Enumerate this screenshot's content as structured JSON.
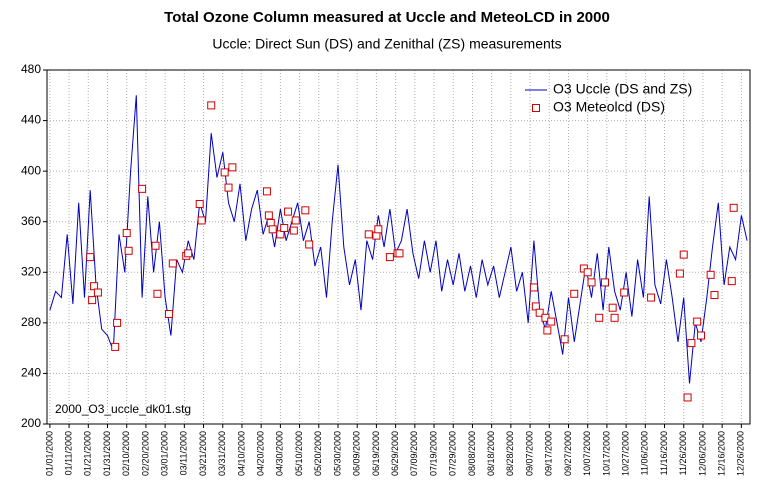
{
  "chart_data": {
    "type": "line",
    "title": "Total Ozone Column measured at Uccle and MeteoLCD in 2000",
    "subtitle": "Uccle: Direct Sun (DS) and Zenithal (ZS) measurements",
    "annotation": "2000_O3_uccle_dk01.stg",
    "xlim": [
      -1.5,
      364.5
    ],
    "ylim": [
      200,
      480
    ],
    "yticks": [
      200,
      240,
      280,
      320,
      360,
      400,
      440,
      480
    ],
    "xticks": [
      {
        "value": 0,
        "label": "01/01/2000"
      },
      {
        "value": 10,
        "label": "01/11/2000"
      },
      {
        "value": 20,
        "label": "01/21/2000"
      },
      {
        "value": 30,
        "label": "01/31/2000"
      },
      {
        "value": 40,
        "label": "02/10/2000"
      },
      {
        "value": 50,
        "label": "02/20/2000"
      },
      {
        "value": 60,
        "label": "03/01/2000"
      },
      {
        "value": 70,
        "label": "03/11/2000"
      },
      {
        "value": 80,
        "label": "03/21/2000"
      },
      {
        "value": 90,
        "label": "03/31/2000"
      },
      {
        "value": 100,
        "label": "04/10/2000"
      },
      {
        "value": 110,
        "label": "04/20/2000"
      },
      {
        "value": 120,
        "label": "04/30/2000"
      },
      {
        "value": 130,
        "label": "05/10/2000"
      },
      {
        "value": 140,
        "label": "05/20/2000"
      },
      {
        "value": 150,
        "label": "05/30/2000"
      },
      {
        "value": 160,
        "label": "06/09/2000"
      },
      {
        "value": 170,
        "label": "06/19/2000"
      },
      {
        "value": 180,
        "label": "06/29/2000"
      },
      {
        "value": 190,
        "label": "07/09/2000"
      },
      {
        "value": 200,
        "label": "07/19/2000"
      },
      {
        "value": 210,
        "label": "07/29/2000"
      },
      {
        "value": 220,
        "label": "08/08/2000"
      },
      {
        "value": 230,
        "label": "08/18/2000"
      },
      {
        "value": 240,
        "label": "08/28/2000"
      },
      {
        "value": 250,
        "label": "09/07/2000"
      },
      {
        "value": 260,
        "label": "09/17/2000"
      },
      {
        "value": 270,
        "label": "09/27/2000"
      },
      {
        "value": 280,
        "label": "10/07/2000"
      },
      {
        "value": 290,
        "label": "10/17/2000"
      },
      {
        "value": 300,
        "label": "10/27/2000"
      },
      {
        "value": 310,
        "label": "11/06/2000"
      },
      {
        "value": 320,
        "label": "11/16/2000"
      },
      {
        "value": 330,
        "label": "11/26/2000"
      },
      {
        "value": 340,
        "label": "12/06/2000"
      },
      {
        "value": 350,
        "label": "12/16/2000"
      },
      {
        "value": 360,
        "label": "12/26/2000"
      }
    ],
    "grid": true,
    "legend": "upper right",
    "series": [
      {
        "name": "O3 Uccle (DS and ZS)",
        "type": "line",
        "color": "#0000c0",
        "x": [
          0,
          3,
          6,
          9,
          12,
          15,
          18,
          21,
          24,
          27,
          30,
          33,
          36,
          39,
          42,
          45,
          48,
          51,
          54,
          57,
          60,
          63,
          66,
          69,
          72,
          75,
          78,
          81,
          84,
          87,
          90,
          93,
          96,
          99,
          102,
          105,
          108,
          111,
          114,
          117,
          120,
          123,
          126,
          129,
          132,
          135,
          138,
          141,
          144,
          147,
          150,
          153,
          156,
          159,
          162,
          165,
          168,
          171,
          174,
          177,
          180,
          183,
          186,
          189,
          192,
          195,
          198,
          201,
          204,
          207,
          210,
          213,
          216,
          219,
          222,
          225,
          228,
          231,
          234,
          237,
          240,
          243,
          246,
          249,
          252,
          255,
          258,
          261,
          264,
          267,
          270,
          273,
          276,
          279,
          282,
          285,
          288,
          291,
          294,
          297,
          300,
          303,
          306,
          309,
          312,
          315,
          318,
          321,
          324,
          327,
          330,
          333,
          336,
          339,
          342,
          345,
          348,
          351,
          354,
          357,
          360,
          363
        ],
        "values": [
          290,
          305,
          300,
          350,
          295,
          375,
          300,
          385,
          310,
          275,
          270,
          258,
          350,
          320,
          400,
          460,
          300,
          380,
          320,
          360,
          300,
          270,
          330,
          320,
          345,
          330,
          375,
          360,
          430,
          395,
          415,
          375,
          360,
          390,
          345,
          370,
          385,
          350,
          365,
          340,
          370,
          345,
          360,
          375,
          345,
          360,
          325,
          340,
          300,
          360,
          405,
          340,
          310,
          330,
          290,
          345,
          330,
          365,
          340,
          370,
          335,
          345,
          370,
          335,
          315,
          345,
          320,
          345,
          305,
          330,
          310,
          335,
          305,
          325,
          300,
          330,
          310,
          325,
          300,
          320,
          340,
          305,
          320,
          280,
          345,
          290,
          275,
          305,
          280,
          255,
          300,
          265,
          295,
          325,
          300,
          335,
          290,
          340,
          305,
          290,
          320,
          285,
          330,
          300,
          380,
          310,
          295,
          330,
          300,
          265,
          300,
          232,
          280,
          265,
          300,
          340,
          375,
          310,
          340,
          330,
          365,
          345
        ]
      },
      {
        "name": "O3 Meteolcd (DS)",
        "type": "scatter",
        "color": "#d00000",
        "x": [
          21,
          22,
          23,
          25,
          34,
          35,
          40,
          41,
          48,
          55,
          56,
          62,
          64,
          71,
          72,
          78,
          79,
          84,
          91,
          93,
          95,
          113,
          114,
          115,
          116,
          120,
          122,
          124,
          127,
          128,
          133,
          135,
          166,
          170,
          171,
          177,
          181,
          182,
          252,
          253,
          255,
          258,
          259,
          261,
          268,
          273,
          278,
          280,
          282,
          286,
          289,
          293,
          294,
          299,
          313,
          328,
          330,
          332,
          334,
          337,
          339,
          344,
          346,
          355,
          356
        ],
        "values": [
          332,
          298,
          309,
          304,
          261,
          280,
          351,
          337,
          386,
          341,
          303,
          287,
          327,
          333,
          335,
          374,
          361,
          452,
          399,
          387,
          403,
          384,
          365,
          359,
          354,
          350,
          355,
          368,
          353,
          361,
          369,
          342,
          350,
          349,
          354,
          332,
          335,
          335,
          308,
          293,
          288,
          284,
          274,
          281,
          267,
          303,
          323,
          320,
          312,
          284,
          312,
          292,
          284,
          304,
          300,
          319,
          334,
          221,
          264,
          281,
          270,
          318,
          302,
          313,
          371
        ]
      }
    ]
  }
}
